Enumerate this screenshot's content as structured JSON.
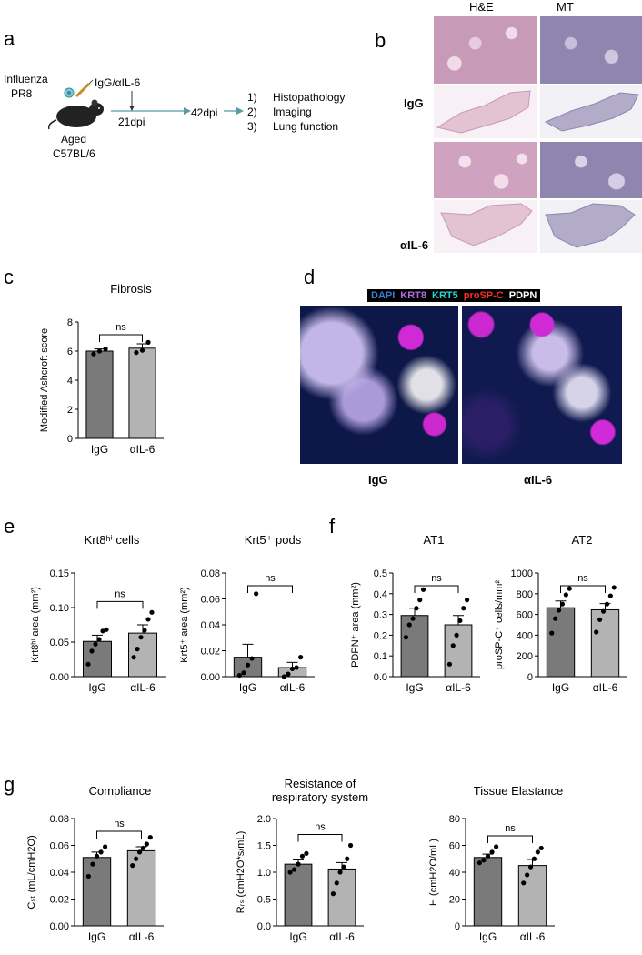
{
  "panel_a": {
    "letter": "a",
    "virus_line1": "Influenza",
    "virus_line2": "PR8",
    "treatment": "IgG/αIL-6",
    "timepoint1": "21dpi",
    "timepoint2": "42dpi",
    "mouse_line1": "Aged",
    "mouse_line2": "C57BL/6",
    "readouts": [
      {
        "num": "1)",
        "label": "Histopathology"
      },
      {
        "num": "2)",
        "label": "Imaging"
      },
      {
        "num": "3)",
        "label": "Lung function"
      }
    ]
  },
  "panel_b": {
    "letter": "b",
    "col_he": "H&E",
    "col_mt": "MT",
    "row_igg": "IgG",
    "row_ail6": "αIL-6",
    "colors": {
      "he_zoom": "#c79ab8",
      "he_whole": "#e3c2d2",
      "mt_zoom": "#8f86b0",
      "mt_whole": "#b2acc9"
    }
  },
  "panel_c": {
    "letter": "c",
    "chart_data": {
      "type": "bar",
      "title": "Fibrosis",
      "ylabel": "Modified Ashcroft score",
      "categories": [
        "IgG",
        "αIL-6"
      ],
      "values": [
        6.0,
        6.2
      ],
      "errors": [
        0.15,
        0.3
      ],
      "points": [
        [
          5.8,
          6.0,
          6.15
        ],
        [
          5.9,
          6.05,
          6.6
        ]
      ],
      "ylim": [
        0,
        8
      ],
      "yticks": [
        "0",
        "2",
        "4",
        "6",
        "8"
      ],
      "sig": "ns",
      "colors": [
        "#7a7a7a",
        "#b3b3b3"
      ]
    }
  },
  "panel_d": {
    "letter": "d",
    "legend": [
      {
        "label": "DAPI",
        "color": "#3a7bd5"
      },
      {
        "label": "KRT8",
        "color": "#b06be0"
      },
      {
        "label": "KRT5",
        "color": "#27d3d3"
      },
      {
        "label": "proSP-C",
        "color": "#ff2a2a"
      },
      {
        "label": "PDPN",
        "color": "#ffffff"
      }
    ],
    "label_igg": "IgG",
    "label_ail6": "αIL-6"
  },
  "panel_e": {
    "letter": "e",
    "charts": [
      {
        "type": "bar",
        "title": "Krt8ʰⁱ cells",
        "ylabel": "Krt8ʰⁱ area (mm²)",
        "categories": [
          "IgG",
          "αIL-6"
        ],
        "values": [
          0.051,
          0.063
        ],
        "errors": [
          0.009,
          0.012
        ],
        "points": [
          [
            0.018,
            0.037,
            0.047,
            0.054,
            0.066,
            0.068
          ],
          [
            0.028,
            0.04,
            0.057,
            0.067,
            0.083,
            0.093
          ]
        ],
        "ylim": [
          0,
          0.15
        ],
        "yticks": [
          "0.00",
          "0.05",
          "0.10",
          "0.15"
        ],
        "sig": "ns",
        "colors": [
          "#7a7a7a",
          "#b3b3b3"
        ]
      },
      {
        "type": "bar",
        "title": "Krt5⁺ pods",
        "ylabel": "Krt5⁺ area (mm²)",
        "categories": [
          "IgG",
          "αIL-6"
        ],
        "values": [
          0.015,
          0.007
        ],
        "errors": [
          0.01,
          0.004
        ],
        "points": [
          [
            0.001,
            0.003,
            0.009,
            0.014,
            0.064
          ],
          [
            0.0,
            0.002,
            0.006,
            0.007,
            0.015
          ]
        ],
        "ylim": [
          0,
          0.08
        ],
        "yticks": [
          "0.00",
          "0.02",
          "0.04",
          "0.06",
          "0.08"
        ],
        "sig": "ns",
        "colors": [
          "#7a7a7a",
          "#b3b3b3"
        ]
      }
    ]
  },
  "panel_f": {
    "letter": "f",
    "charts": [
      {
        "type": "bar",
        "title": "AT1",
        "ylabel": "PDPN⁺ area (mm²)",
        "categories": [
          "IgG",
          "αIL-6"
        ],
        "values": [
          0.295,
          0.25
        ],
        "errors": [
          0.035,
          0.045
        ],
        "points": [
          [
            0.19,
            0.25,
            0.28,
            0.33,
            0.37,
            0.42
          ],
          [
            0.06,
            0.15,
            0.2,
            0.27,
            0.33,
            0.37
          ]
        ],
        "ylim": [
          0,
          0.5
        ],
        "yticks": [
          "0.0",
          "0.1",
          "0.2",
          "0.3",
          "0.4",
          "0.5"
        ],
        "sig": "ns",
        "colors": [
          "#7a7a7a",
          "#b3b3b3"
        ]
      },
      {
        "type": "bar",
        "title": "AT2",
        "ylabel": "proSP-C⁺ cells/mm²",
        "categories": [
          "IgG",
          "αIL-6"
        ],
        "values": [
          665,
          645
        ],
        "errors": [
          65,
          60
        ],
        "points": [
          [
            420,
            560,
            640,
            700,
            790,
            850
          ],
          [
            430,
            550,
            630,
            700,
            780,
            860
          ]
        ],
        "ylim": [
          0,
          1000
        ],
        "yticks": [
          "0",
          "200",
          "400",
          "600",
          "800",
          "1000"
        ],
        "sig": "ns",
        "colors": [
          "#7a7a7a",
          "#b3b3b3"
        ]
      }
    ]
  },
  "panel_g": {
    "letter": "g",
    "charts": [
      {
        "type": "bar",
        "title": "Compliance",
        "ylabel": "Cₛₜ (mL/cmH2O)",
        "categories": [
          "IgG",
          "αIL-6"
        ],
        "values": [
          0.051,
          0.056
        ],
        "errors": [
          0.004,
          0.003
        ],
        "points": [
          [
            0.037,
            0.046,
            0.052,
            0.055,
            0.059
          ],
          [
            0.045,
            0.05,
            0.055,
            0.058,
            0.061,
            0.066
          ]
        ],
        "ylim": [
          0,
          0.08
        ],
        "yticks": [
          "0.00",
          "0.02",
          "0.04",
          "0.06",
          "0.08"
        ],
        "sig": "ns",
        "colors": [
          "#7a7a7a",
          "#b3b3b3"
        ]
      },
      {
        "type": "bar",
        "title": "Resistance of respiratory system",
        "ylabel": "Rᵣₛ (cmH2O*s/mL)",
        "categories": [
          "IgG",
          "αIL-6"
        ],
        "values": [
          1.15,
          1.06
        ],
        "errors": [
          0.08,
          0.12
        ],
        "points": [
          [
            1.0,
            1.05,
            1.15,
            1.3,
            1.35
          ],
          [
            0.6,
            0.8,
            1.0,
            1.1,
            1.25,
            1.5
          ]
        ],
        "ylim": [
          0,
          2.0
        ],
        "yticks": [
          "0.0",
          "0.5",
          "1.0",
          "1.5",
          "2.0"
        ],
        "sig": "ns",
        "colors": [
          "#7a7a7a",
          "#b3b3b3"
        ]
      },
      {
        "type": "bar",
        "title": "Tissue Elastance",
        "ylabel": "H (cmH2O/mL)",
        "categories": [
          "IgG",
          "αIL-6"
        ],
        "values": [
          51,
          45
        ],
        "errors": [
          2.5,
          4.5
        ],
        "points": [
          [
            47,
            49,
            52,
            55,
            59
          ],
          [
            32,
            38,
            44,
            50,
            55,
            58
          ]
        ],
        "ylim": [
          0,
          80
        ],
        "yticks": [
          "0",
          "20",
          "40",
          "60",
          "80"
        ],
        "sig": "ns",
        "colors": [
          "#7a7a7a",
          "#b3b3b3"
        ]
      }
    ]
  }
}
